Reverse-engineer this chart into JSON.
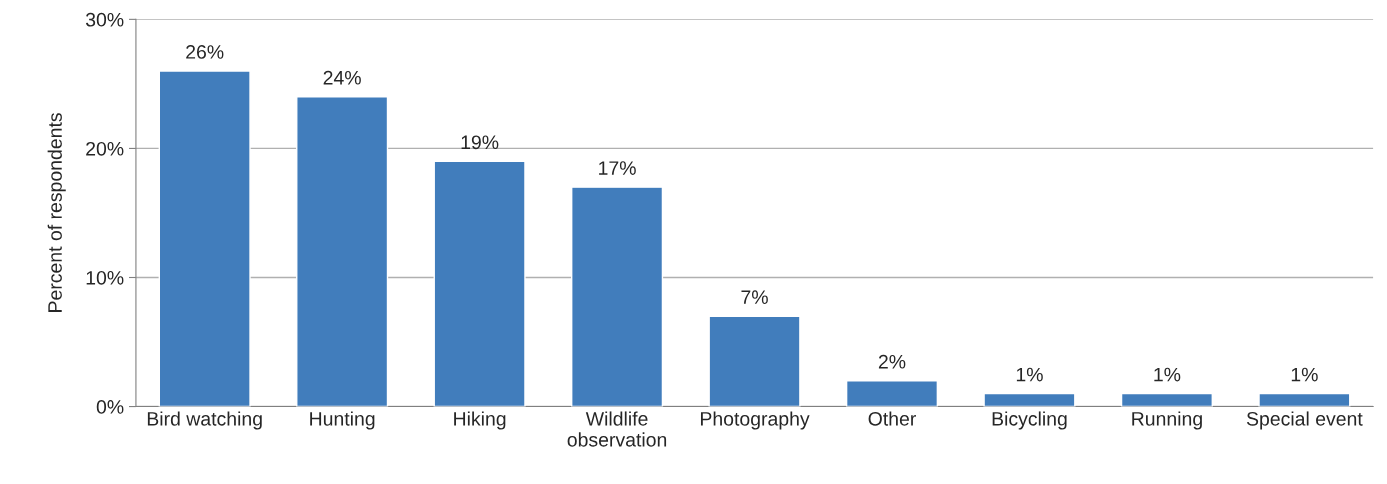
{
  "chart_data": {
    "type": "bar",
    "ylabel": "Percent of respondents",
    "categories": [
      "Bird watching",
      "Hunting",
      "Hiking",
      "Wildlife\nobservation",
      "Photography",
      "Other",
      "Bicycling",
      "Running",
      "Special event"
    ],
    "values": [
      26,
      24,
      19,
      17,
      7,
      2,
      1,
      1,
      1
    ],
    "value_labels": [
      "26%",
      "24%",
      "19%",
      "17%",
      "7%",
      "2%",
      "1%",
      "1%",
      "1%"
    ],
    "color": "#417dbc",
    "ylim": [
      0,
      30
    ],
    "yticks": [
      {
        "value": 0,
        "label": "0%"
      },
      {
        "value": 10,
        "label": "10%"
      },
      {
        "value": 20,
        "label": "20%"
      },
      {
        "value": 30,
        "label": "30%"
      }
    ],
    "grid": "y",
    "legend": false
  }
}
